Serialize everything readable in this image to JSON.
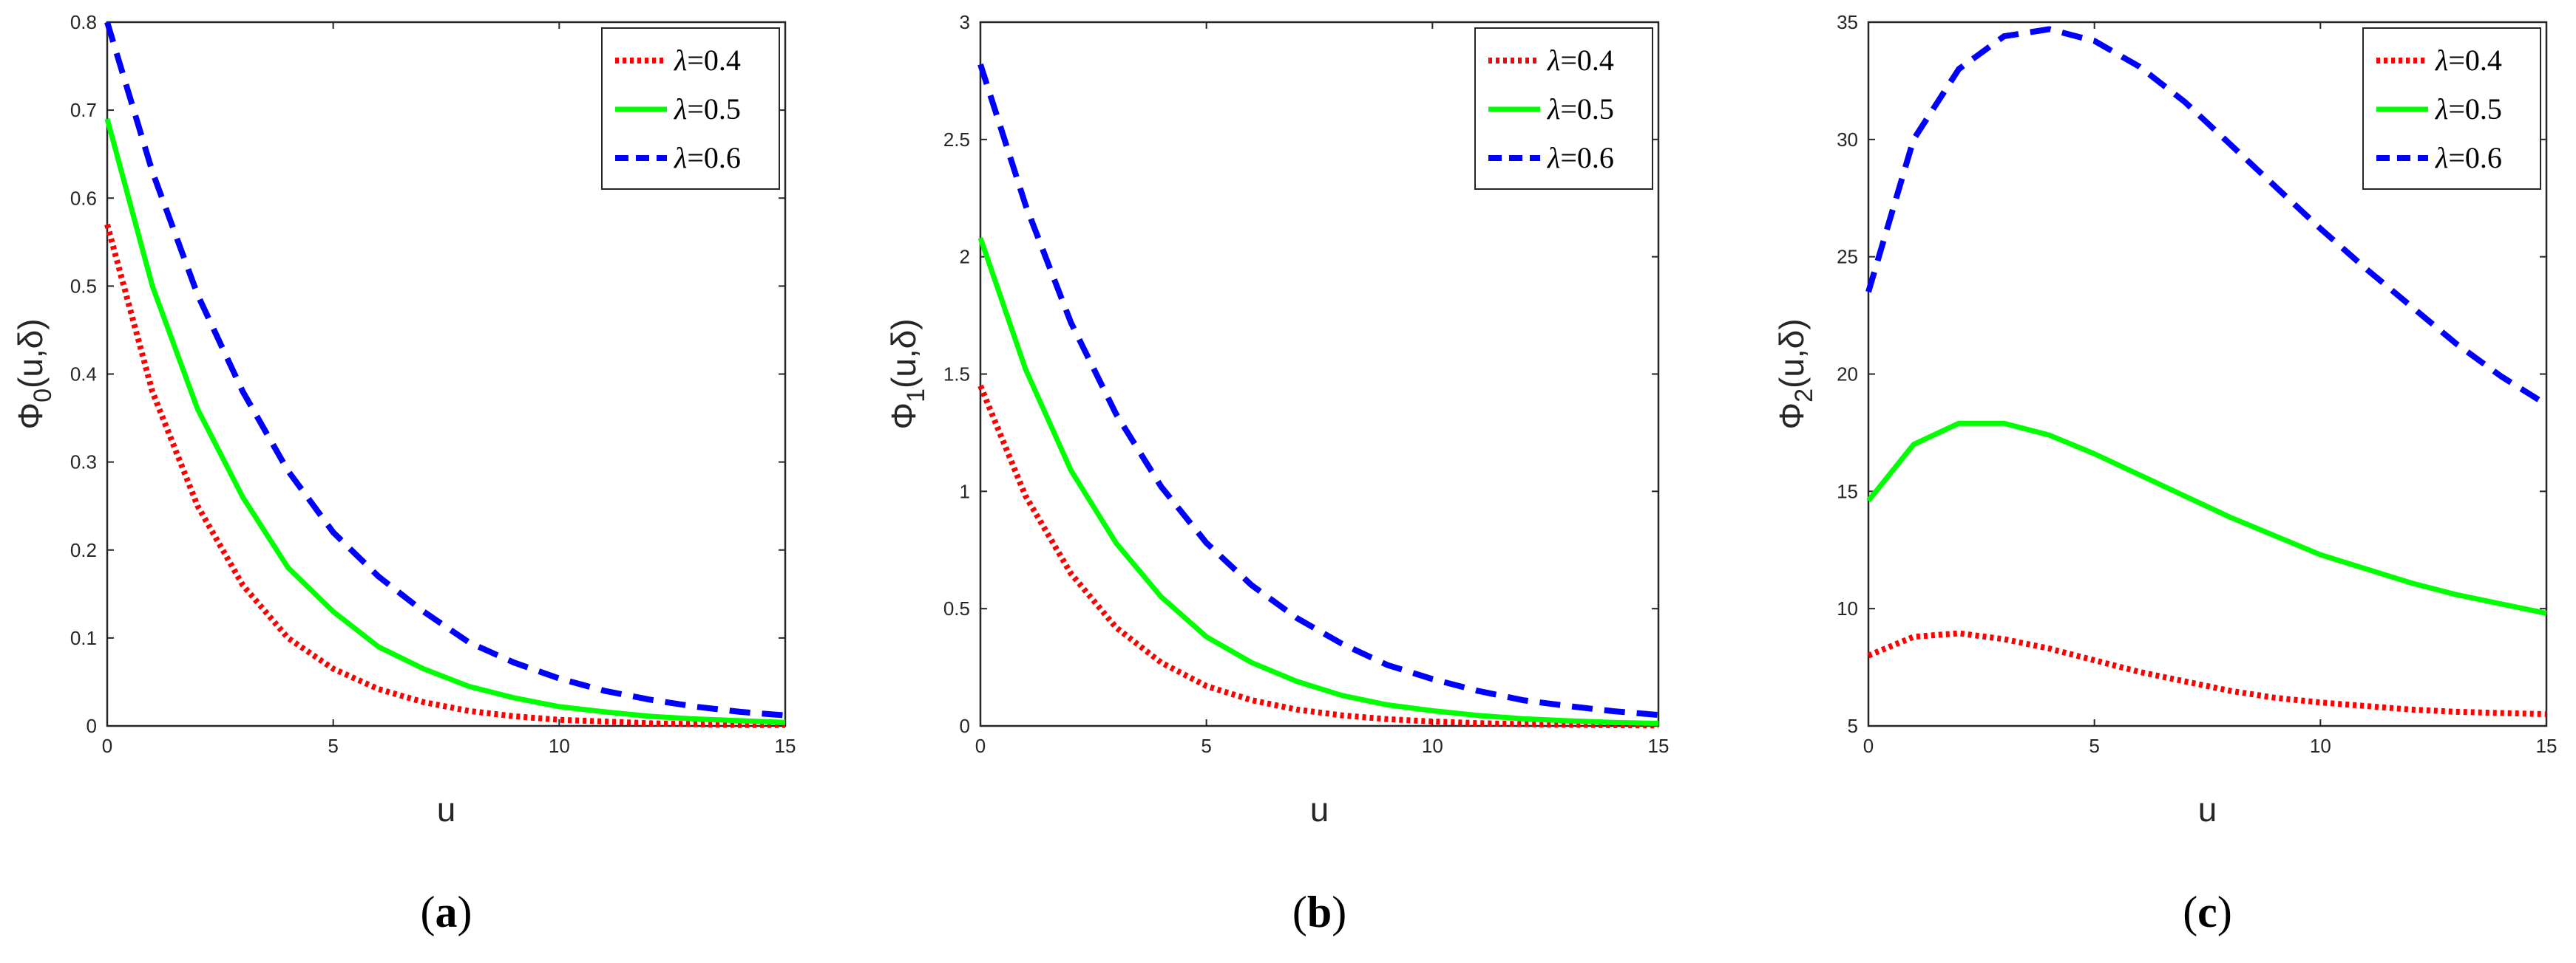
{
  "chart_data": [
    {
      "type": "line",
      "panel_label": "(a)",
      "panel_letter": "a",
      "xlabel": "u",
      "ylabel_base": "Φ",
      "ylabel_sub": "0",
      "ylabel_args": "(u,δ)",
      "xlim": [
        0,
        15
      ],
      "ylim": [
        0,
        0.8
      ],
      "xticks": [
        0,
        5,
        10,
        15
      ],
      "yticks": [
        0,
        0.1,
        0.2,
        0.3,
        0.4,
        0.5,
        0.6,
        0.7,
        0.8
      ],
      "legend_position": "top-right",
      "series": [
        {
          "name": "λ=0.4",
          "lambda_symbol": "λ",
          "lambda_value": "=0.4",
          "color": "#ff0000",
          "style": "dotted",
          "x": [
            0,
            1,
            2,
            3,
            4,
            5,
            6,
            7,
            8,
            9,
            10,
            11,
            12,
            13,
            14,
            15
          ],
          "y": [
            0.57,
            0.38,
            0.25,
            0.16,
            0.1,
            0.065,
            0.042,
            0.027,
            0.017,
            0.011,
            0.007,
            0.005,
            0.003,
            0.002,
            0.001,
            0.001
          ]
        },
        {
          "name": "λ=0.5",
          "lambda_symbol": "λ",
          "lambda_value": "=0.5",
          "color": "#00ff00",
          "style": "solid",
          "x": [
            0,
            1,
            2,
            3,
            4,
            5,
            6,
            7,
            8,
            9,
            10,
            11,
            12,
            13,
            14,
            15
          ],
          "y": [
            0.69,
            0.5,
            0.36,
            0.26,
            0.18,
            0.13,
            0.09,
            0.065,
            0.045,
            0.032,
            0.022,
            0.016,
            0.011,
            0.008,
            0.006,
            0.004
          ]
        },
        {
          "name": "λ=0.6",
          "lambda_symbol": "λ",
          "lambda_value": "=0.6",
          "color": "#0000ff",
          "style": "dashed",
          "x": [
            0,
            1,
            2,
            3,
            4,
            5,
            6,
            7,
            8,
            9,
            10,
            11,
            12,
            13,
            14,
            15
          ],
          "y": [
            0.8,
            0.63,
            0.49,
            0.38,
            0.29,
            0.22,
            0.17,
            0.13,
            0.095,
            0.072,
            0.054,
            0.04,
            0.03,
            0.022,
            0.016,
            0.012
          ]
        }
      ]
    },
    {
      "type": "line",
      "panel_label": "(b)",
      "panel_letter": "b",
      "xlabel": "u",
      "ylabel_base": "Φ",
      "ylabel_sub": "1",
      "ylabel_args": "(u,δ)",
      "xlim": [
        0,
        15
      ],
      "ylim": [
        0,
        3
      ],
      "xticks": [
        0,
        5,
        10,
        15
      ],
      "yticks": [
        0,
        0.5,
        1,
        1.5,
        2,
        2.5,
        3
      ],
      "legend_position": "top-right",
      "series": [
        {
          "name": "λ=0.4",
          "lambda_symbol": "λ",
          "lambda_value": "=0.4",
          "color": "#ff0000",
          "style": "dotted",
          "x": [
            0,
            1,
            2,
            3,
            4,
            5,
            6,
            7,
            8,
            9,
            10,
            11,
            12,
            13,
            14,
            15
          ],
          "y": [
            1.45,
            0.98,
            0.65,
            0.42,
            0.27,
            0.17,
            0.11,
            0.07,
            0.045,
            0.029,
            0.019,
            0.012,
            0.008,
            0.005,
            0.003,
            0.002
          ]
        },
        {
          "name": "λ=0.5",
          "lambda_symbol": "λ",
          "lambda_value": "=0.5",
          "color": "#00ff00",
          "style": "solid",
          "x": [
            0,
            1,
            2,
            3,
            4,
            5,
            6,
            7,
            8,
            9,
            10,
            11,
            12,
            13,
            14,
            15
          ],
          "y": [
            2.08,
            1.52,
            1.09,
            0.78,
            0.55,
            0.38,
            0.27,
            0.19,
            0.13,
            0.09,
            0.065,
            0.045,
            0.031,
            0.022,
            0.015,
            0.011
          ]
        },
        {
          "name": "λ=0.6",
          "lambda_symbol": "λ",
          "lambda_value": "=0.6",
          "color": "#0000ff",
          "style": "dashed",
          "x": [
            0,
            1,
            2,
            3,
            4,
            5,
            6,
            7,
            8,
            9,
            10,
            11,
            12,
            13,
            14,
            15
          ],
          "y": [
            2.82,
            2.22,
            1.72,
            1.33,
            1.02,
            0.78,
            0.6,
            0.46,
            0.35,
            0.26,
            0.2,
            0.15,
            0.11,
            0.085,
            0.063,
            0.047
          ]
        }
      ]
    },
    {
      "type": "line",
      "panel_label": "(c)",
      "panel_letter": "c",
      "xlabel": "u",
      "ylabel_base": "Φ",
      "ylabel_sub": "2",
      "ylabel_args": "(u,δ)",
      "xlim": [
        0,
        15
      ],
      "ylim": [
        5,
        35
      ],
      "xticks": [
        0,
        5,
        10,
        15
      ],
      "yticks": [
        5,
        10,
        15,
        20,
        25,
        30,
        35
      ],
      "legend_position": "top-right",
      "series": [
        {
          "name": "λ=0.4",
          "lambda_symbol": "λ",
          "lambda_value": "=0.4",
          "color": "#ff0000",
          "style": "dotted",
          "x": [
            0,
            1,
            2,
            3,
            4,
            5,
            6,
            7,
            8,
            9,
            10,
            11,
            12,
            13,
            14,
            15
          ],
          "y": [
            8.0,
            8.8,
            8.95,
            8.7,
            8.3,
            7.8,
            7.3,
            6.9,
            6.5,
            6.2,
            6.0,
            5.85,
            5.7,
            5.6,
            5.55,
            5.5
          ]
        },
        {
          "name": "λ=0.5",
          "lambda_symbol": "λ",
          "lambda_value": "=0.5",
          "color": "#00ff00",
          "style": "solid",
          "x": [
            0,
            1,
            2,
            3,
            4,
            5,
            6,
            7,
            8,
            9,
            10,
            11,
            12,
            13,
            14,
            15
          ],
          "y": [
            14.6,
            17.0,
            17.9,
            17.9,
            17.4,
            16.6,
            15.7,
            14.8,
            13.9,
            13.1,
            12.3,
            11.7,
            11.1,
            10.6,
            10.2,
            9.8
          ]
        },
        {
          "name": "λ=0.6",
          "lambda_symbol": "λ",
          "lambda_value": "=0.6",
          "color": "#0000ff",
          "style": "dashed",
          "x": [
            0,
            1,
            2,
            3,
            4,
            5,
            6,
            7,
            8,
            9,
            10,
            11,
            12,
            13,
            14,
            15
          ],
          "y": [
            23.5,
            30.0,
            33.0,
            34.4,
            34.7,
            34.2,
            33.1,
            31.6,
            29.8,
            28.0,
            26.2,
            24.5,
            22.9,
            21.3,
            19.9,
            18.7
          ]
        }
      ]
    }
  ]
}
